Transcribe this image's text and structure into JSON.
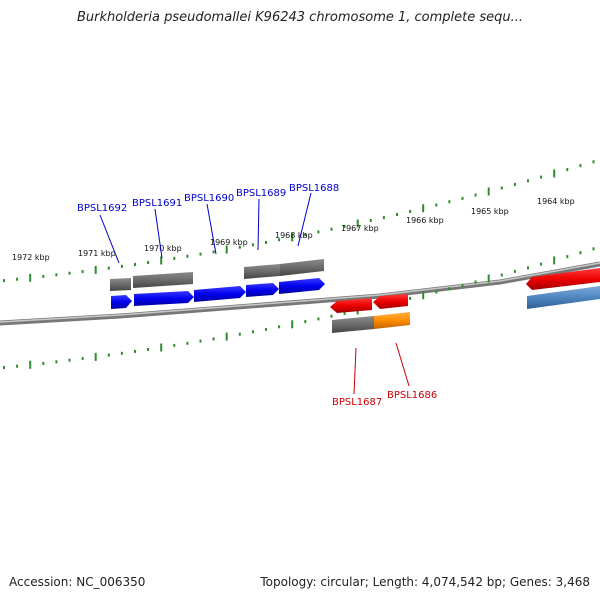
{
  "title": "Burkholderia pseudomallei K96243 chromosome 1, complete sequ...",
  "footer": {
    "accession": "Accession: NC_006350",
    "summary": "Topology: circular; Length: 4,074,542 bp; Genes: 3,468"
  },
  "colors": {
    "backbone": "#8c8c8c",
    "tick": "#2e8b2e",
    "forward_gene": "#0000ee",
    "reverse_gene": "#ee0000",
    "forward_label": "#0000cc",
    "reverse_label": "#cc0000",
    "gray_feature": "#6b6b6b",
    "orange_feature": "#ff8c00",
    "steel_feature": "#4f86bf"
  },
  "scale_labels": [
    "1972 kbp",
    "1971 kbp",
    "1970 kbp",
    "1969 kbp",
    "1968 kbp",
    "1967 kbp",
    "1966 kbp",
    "1965 kbp",
    "1964 kbp"
  ],
  "forward_gene_labels": [
    "BPSL1692",
    "BPSL1691",
    "BPSL1690",
    "BPSL1689",
    "BPSL1688"
  ],
  "reverse_gene_labels": [
    "BPSL1687",
    "BPSL1686"
  ]
}
